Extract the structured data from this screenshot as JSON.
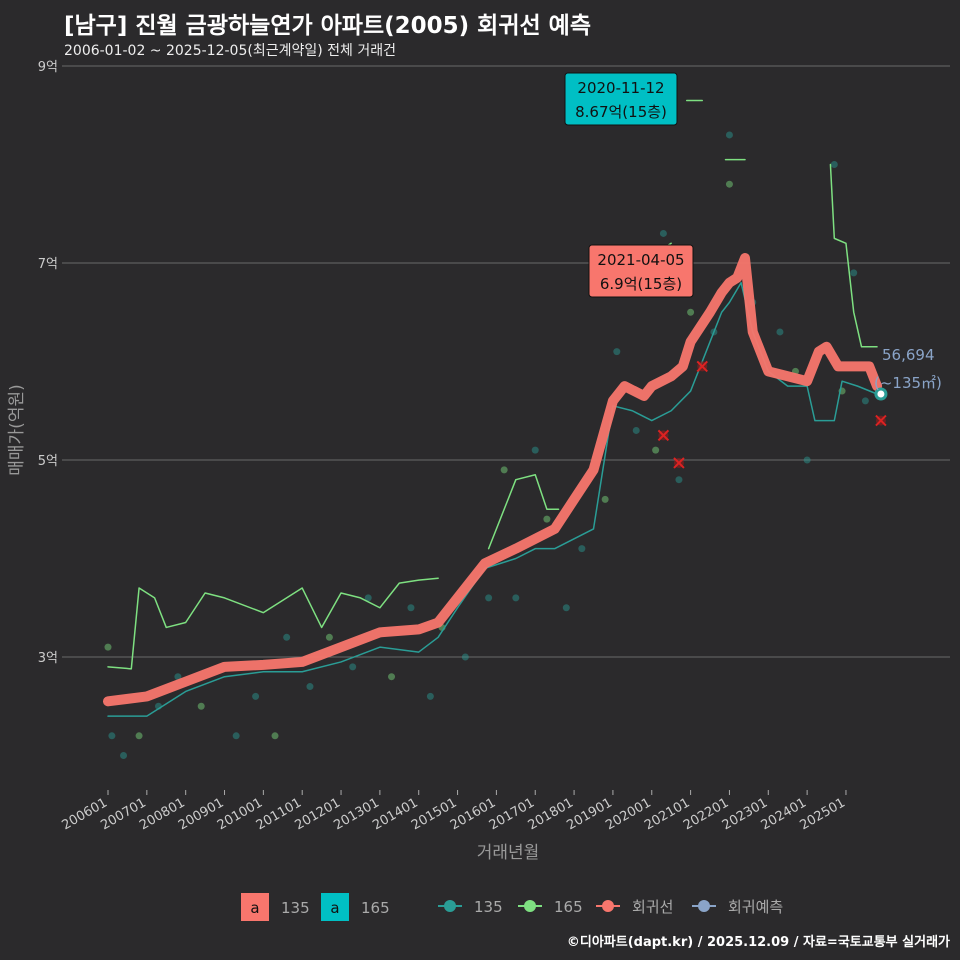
{
  "title": "[남구] 진월 금광하늘연가 아파트(2005) 회귀선 예측",
  "subtitle": "2006-01-02 ~ 2025-12-05(최근계약일) 전체 거래건",
  "credit": "©디아파트(dapt.kr) / 2025.12.09 / 자료=국토교통부 실거래가",
  "chart_data": {
    "type": "line",
    "xlabel": "거래년월",
    "ylabel": "매매가(억원)",
    "ylim": [
      1.7,
      9.0
    ],
    "xlim": [
      2005.0,
      2026.5
    ],
    "yticks": [
      {
        "v": 3,
        "label": "3억"
      },
      {
        "v": 5,
        "label": "5억"
      },
      {
        "v": 7,
        "label": "7억"
      },
      {
        "v": 9,
        "label": "9억"
      }
    ],
    "xticks": [
      "200601",
      "200701",
      "200801",
      "200901",
      "201001",
      "201101",
      "201201",
      "201301",
      "201401",
      "201501",
      "201601",
      "201701",
      "201801",
      "201901",
      "202001",
      "202101",
      "202201",
      "202301",
      "202401",
      "202501"
    ],
    "series": [
      {
        "name": "회귀선",
        "color": "#f8766d",
        "width": 10,
        "points": [
          [
            2006.0,
            2.55
          ],
          [
            2007.0,
            2.6
          ],
          [
            2008.0,
            2.75
          ],
          [
            2009.0,
            2.9
          ],
          [
            2010.0,
            2.92
          ],
          [
            2011.0,
            2.95
          ],
          [
            2012.0,
            3.1
          ],
          [
            2013.0,
            3.25
          ],
          [
            2014.0,
            3.28
          ],
          [
            2014.5,
            3.35
          ],
          [
            2015.0,
            3.6
          ],
          [
            2015.7,
            3.95
          ],
          [
            2016.5,
            4.1
          ],
          [
            2017.0,
            4.2
          ],
          [
            2017.5,
            4.3
          ],
          [
            2018.0,
            4.6
          ],
          [
            2018.5,
            4.9
          ],
          [
            2019.0,
            5.6
          ],
          [
            2019.3,
            5.75
          ],
          [
            2019.8,
            5.65
          ],
          [
            2020.0,
            5.75
          ],
          [
            2020.5,
            5.85
          ],
          [
            2020.8,
            5.95
          ],
          [
            2021.0,
            6.2
          ],
          [
            2021.5,
            6.5
          ],
          [
            2021.8,
            6.7
          ],
          [
            2022.0,
            6.8
          ],
          [
            2022.2,
            6.85
          ],
          [
            2022.4,
            7.05
          ],
          [
            2022.6,
            6.3
          ],
          [
            2023.0,
            5.9
          ],
          [
            2023.5,
            5.85
          ],
          [
            2024.0,
            5.8
          ],
          [
            2024.3,
            6.1
          ],
          [
            2024.5,
            6.15
          ],
          [
            2024.8,
            5.95
          ],
          [
            2025.2,
            5.95
          ],
          [
            2025.6,
            5.95
          ],
          [
            2025.8,
            5.75
          ]
        ]
      },
      {
        "name": "135",
        "color": "#2a9d96",
        "width": 1.5,
        "points": [
          [
            2006.0,
            2.4
          ],
          [
            2007.0,
            2.4
          ],
          [
            2008.0,
            2.65
          ],
          [
            2009.0,
            2.8
          ],
          [
            2010.0,
            2.85
          ],
          [
            2011.0,
            2.85
          ],
          [
            2012.0,
            2.95
          ],
          [
            2013.0,
            3.1
          ],
          [
            2014.0,
            3.05
          ],
          [
            2014.5,
            3.2
          ],
          [
            2015.0,
            3.5
          ],
          [
            2015.7,
            3.9
          ],
          [
            2016.5,
            4.0
          ],
          [
            2017.0,
            4.1
          ],
          [
            2017.5,
            4.1
          ],
          [
            2018.0,
            4.2
          ],
          [
            2018.5,
            4.3
          ],
          [
            2019.0,
            5.55
          ],
          [
            2019.5,
            5.5
          ],
          [
            2020.0,
            5.4
          ],
          [
            2020.5,
            5.5
          ],
          [
            2021.0,
            5.7
          ],
          [
            2021.5,
            6.2
          ],
          [
            2021.8,
            6.5
          ],
          [
            2022.0,
            6.6
          ],
          [
            2022.3,
            6.8
          ],
          [
            2022.6,
            6.3
          ],
          [
            2023.0,
            5.9
          ],
          [
            2023.5,
            5.75
          ],
          [
            2024.0,
            5.75
          ],
          [
            2024.2,
            5.4
          ],
          [
            2024.7,
            5.4
          ],
          [
            2024.9,
            5.8
          ],
          [
            2025.3,
            5.75
          ],
          [
            2025.8,
            5.67
          ]
        ]
      },
      {
        "name": "165",
        "color": "#7ee081",
        "width": 1.5,
        "points": [
          [
            2006.0,
            2.9
          ],
          [
            2006.6,
            2.88
          ],
          [
            2006.8,
            3.7
          ],
          [
            2007.2,
            3.6
          ],
          [
            2007.5,
            3.3
          ],
          [
            2008.0,
            3.35
          ],
          [
            2008.5,
            3.65
          ],
          [
            2009.0,
            3.6
          ],
          [
            2010.0,
            3.45
          ],
          [
            2011.0,
            3.7
          ],
          [
            2011.5,
            3.3
          ],
          [
            2012.0,
            3.65
          ],
          [
            2012.5,
            3.6
          ],
          [
            2013.0,
            3.5
          ],
          [
            2013.5,
            3.75
          ],
          [
            2014.0,
            3.78
          ],
          [
            2014.5,
            3.8
          ]
        ]
      },
      {
        "name": "165",
        "color": "#7ee081",
        "width": 1.5,
        "points": [
          [
            2015.8,
            4.1
          ],
          [
            2016.5,
            4.8
          ],
          [
            2017.0,
            4.85
          ],
          [
            2017.3,
            4.5
          ],
          [
            2017.6,
            4.5
          ]
        ]
      },
      {
        "name": "165",
        "color": "#7ee081",
        "width": 1.5,
        "points": [
          [
            2020.3,
            7.15
          ],
          [
            2020.5,
            7.2
          ]
        ]
      },
      {
        "name": "165",
        "color": "#7ee081",
        "width": 1.5,
        "points": [
          [
            2020.9,
            8.65
          ],
          [
            2021.3,
            8.65
          ]
        ]
      },
      {
        "name": "165",
        "color": "#7ee081",
        "width": 1.5,
        "points": [
          [
            2021.9,
            8.05
          ],
          [
            2022.4,
            8.05
          ]
        ]
      },
      {
        "name": "165",
        "color": "#7ee081",
        "width": 1.5,
        "points": [
          [
            2024.6,
            8.0
          ],
          [
            2024.7,
            7.25
          ],
          [
            2025.0,
            7.2
          ],
          [
            2025.2,
            6.5
          ],
          [
            2025.4,
            6.15
          ],
          [
            2025.8,
            6.15
          ]
        ]
      }
    ],
    "scatter": [
      [
        2006.0,
        3.1
      ],
      [
        2006.1,
        2.2
      ],
      [
        2006.4,
        2.0
      ],
      [
        2006.8,
        2.2
      ],
      [
        2007.3,
        2.5
      ],
      [
        2007.8,
        2.8
      ],
      [
        2008.4,
        2.5
      ],
      [
        2009.3,
        2.2
      ],
      [
        2009.8,
        2.6
      ],
      [
        2010.3,
        2.2
      ],
      [
        2010.6,
        3.2
      ],
      [
        2011.2,
        2.7
      ],
      [
        2011.7,
        3.2
      ],
      [
        2012.3,
        2.9
      ],
      [
        2012.7,
        3.6
      ],
      [
        2013.3,
        2.8
      ],
      [
        2013.8,
        3.5
      ],
      [
        2014.3,
        2.6
      ],
      [
        2014.6,
        3.3
      ],
      [
        2015.2,
        3.0
      ],
      [
        2015.8,
        3.6
      ],
      [
        2016.2,
        4.9
      ],
      [
        2016.5,
        3.6
      ],
      [
        2017.0,
        5.1
      ],
      [
        2017.3,
        4.4
      ],
      [
        2017.8,
        3.5
      ],
      [
        2018.2,
        4.1
      ],
      [
        2018.8,
        4.6
      ],
      [
        2019.1,
        6.1
      ],
      [
        2019.6,
        5.3
      ],
      [
        2020.1,
        5.1
      ],
      [
        2020.3,
        7.3
      ],
      [
        2020.7,
        4.8
      ],
      [
        2021.0,
        6.5
      ],
      [
        2021.6,
        6.3
      ],
      [
        2022.0,
        8.3
      ],
      [
        2022.0,
        7.8
      ],
      [
        2022.6,
        6.6
      ],
      [
        2023.3,
        6.3
      ],
      [
        2023.7,
        5.9
      ],
      [
        2024.0,
        5.0
      ],
      [
        2024.7,
        8.0
      ],
      [
        2024.9,
        5.7
      ],
      [
        2025.2,
        6.9
      ],
      [
        2025.5,
        5.6
      ]
    ],
    "scatter_colors": {
      "135": "#2a9d96",
      "165": "#7ee081"
    },
    "x_marks": [
      [
        2020.3,
        5.25
      ],
      [
        2020.7,
        4.97
      ],
      [
        2021.3,
        5.95
      ],
      [
        2025.9,
        5.4
      ]
    ],
    "prediction": {
      "x": 2025.9,
      "y": 5.67,
      "label": "56,694",
      "sublabel": "(~135㎡)",
      "color": "#8aa4c8"
    },
    "annotations": [
      {
        "date": "2020-11-12",
        "price": "8.67억(15층)",
        "x": 2021.0,
        "y": 8.67,
        "fill": "#00bfc4"
      },
      {
        "date": "2021-04-05",
        "price": "6.9억(15층)",
        "x": 2021.3,
        "y": 6.9,
        "fill": "#f8766d"
      }
    ],
    "legend": {
      "fill": [
        {
          "key": "a",
          "label": "135",
          "color": "#f8766d"
        },
        {
          "key": "a",
          "label": "165",
          "color": "#00bfc4"
        }
      ],
      "lines": [
        {
          "label": "135",
          "color": "#2a9d96"
        },
        {
          "label": "165",
          "color": "#7ee081"
        },
        {
          "label": "회귀선",
          "color": "#f8766d"
        },
        {
          "label": "회귀예측",
          "color": "#8aa4c8"
        }
      ]
    }
  }
}
